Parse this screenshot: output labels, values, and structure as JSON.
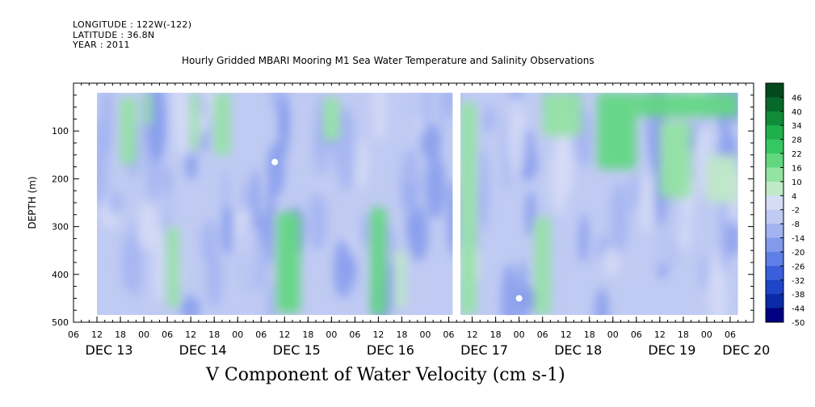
{
  "header": {
    "longitude": "LONGITUDE : 122W(-122)",
    "latitude": "LATITUDE : 36.8N",
    "year": "YEAR : 2011"
  },
  "chart_data": {
    "type": "heatmap",
    "title": "Hourly Gridded MBARI Mooring M1 Sea Water Temperature and Salinity Observations",
    "xlabel": "V Component of Water Velocity (cm s-1)",
    "ylabel": "DEPTH (m)",
    "y_range": [
      500,
      0
    ],
    "y_ticks": [
      100,
      200,
      300,
      400,
      500
    ],
    "y_tick_labels": [
      "100",
      "200",
      "300",
      "400",
      "500"
    ],
    "x_range_hours": [
      0,
      174
    ],
    "x_ticks_hours": [
      0,
      6,
      12,
      18,
      24,
      30,
      36,
      42,
      48,
      54,
      60,
      66,
      72,
      78,
      84,
      90,
      96,
      102,
      108,
      114,
      120,
      126,
      132,
      138,
      144,
      150,
      156,
      162,
      168
    ],
    "x_tick_labels": [
      "06",
      "12",
      "18",
      "00",
      "06",
      "12",
      "18",
      "00",
      "06",
      "12",
      "18",
      "00",
      "06",
      "12",
      "18",
      "00",
      "06",
      "12",
      "18",
      "00",
      "06",
      "12",
      "18",
      "00",
      "06",
      "12",
      "18",
      "00",
      "06"
    ],
    "day_labels": [
      {
        "text": "DEC 13",
        "hour": 3
      },
      {
        "text": "DEC 14",
        "hour": 27
      },
      {
        "text": "DEC 15",
        "hour": 51
      },
      {
        "text": "DEC 16",
        "hour": 75
      },
      {
        "text": "DEC 17",
        "hour": 99
      },
      {
        "text": "DEC 18",
        "hour": 123
      },
      {
        "text": "DEC 19",
        "hour": 147
      },
      {
        "text": "DEC 20",
        "hour": 166
      }
    ],
    "data_hours": [
      6,
      170
    ],
    "data_depths": [
      20,
      485
    ],
    "gap_hours": [
      97.0,
      99.0
    ],
    "colorbar": {
      "levels": [
        "46",
        "40",
        "34",
        "28",
        "22",
        "16",
        "10",
        "4",
        "-2",
        "-8",
        "-14",
        "-20",
        "-26",
        "-32",
        "-38",
        "-44",
        "-50"
      ],
      "range": [
        -50,
        50
      ],
      "colors": [
        "#000080",
        "#0a2aa8",
        "#1e45c8",
        "#3a5fdc",
        "#5f7fe6",
        "#8299ec",
        "#a3b3f0",
        "#c0cbf3",
        "#d6dcf6",
        "#bfe9c7",
        "#93e3a2",
        "#62d780",
        "#35c862",
        "#1fb04c",
        "#108c39",
        "#06682a",
        "#024a1d"
      ]
    },
    "features": [
      {
        "kind": "green_band",
        "hours": [
          12,
          16
        ],
        "depths": [
          30,
          170
        ],
        "value": 12
      },
      {
        "kind": "green_band",
        "hours": [
          18,
          20
        ],
        "depths": [
          20,
          90
        ],
        "value": 10
      },
      {
        "kind": "green_band",
        "hours": [
          24,
          27
        ],
        "depths": [
          300,
          470
        ],
        "value": 14
      },
      {
        "kind": "green_band",
        "hours": [
          30,
          32
        ],
        "depths": [
          20,
          140
        ],
        "value": 12
      },
      {
        "kind": "green_band",
        "hours": [
          36,
          40
        ],
        "depths": [
          20,
          150
        ],
        "value": 14
      },
      {
        "kind": "green_band",
        "hours": [
          52,
          58
        ],
        "depths": [
          270,
          480
        ],
        "value": 16
      },
      {
        "kind": "green_band",
        "hours": [
          64,
          68
        ],
        "depths": [
          30,
          120
        ],
        "value": 10
      },
      {
        "kind": "green_band",
        "hours": [
          76,
          80
        ],
        "depths": [
          260,
          485
        ],
        "value": 18
      },
      {
        "kind": "green_band",
        "hours": [
          82,
          85
        ],
        "depths": [
          350,
          470
        ],
        "value": 8
      },
      {
        "kind": "green_band",
        "hours": [
          99,
          103
        ],
        "depths": [
          40,
          485
        ],
        "value": 10
      },
      {
        "kind": "green_band",
        "hours": [
          118,
          122
        ],
        "depths": [
          280,
          485
        ],
        "value": 12
      },
      {
        "kind": "green_band",
        "hours": [
          120,
          130
        ],
        "depths": [
          20,
          110
        ],
        "value": 10
      },
      {
        "kind": "green_band",
        "hours": [
          134,
          144
        ],
        "depths": [
          20,
          180
        ],
        "value": 16
      },
      {
        "kind": "green_band",
        "hours": [
          144,
          170
        ],
        "depths": [
          20,
          70
        ],
        "value": 20
      },
      {
        "kind": "green_band",
        "hours": [
          150,
          158
        ],
        "depths": [
          80,
          240
        ],
        "value": 10
      },
      {
        "kind": "green_band",
        "hours": [
          162,
          170
        ],
        "depths": [
          150,
          250
        ],
        "value": 8
      }
    ],
    "missing_spots": [
      {
        "hour": 51.5,
        "depth": 165
      },
      {
        "hour": 114,
        "depth": 450
      }
    ]
  }
}
